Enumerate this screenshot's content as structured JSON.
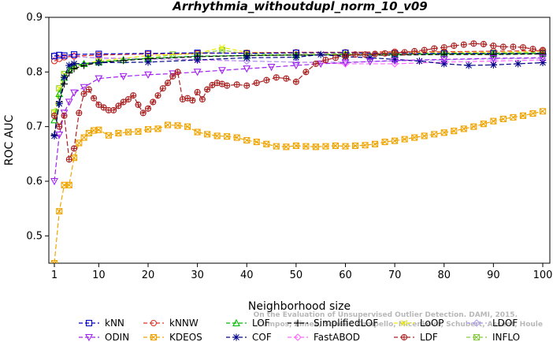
{
  "chart_data": {
    "type": "line",
    "title": "Arrhythmia_withoutdupl_norm_10_v09",
    "xlabel": "Neighborhood size",
    "ylabel": "ROC AUC",
    "xlim": [
      1,
      100
    ],
    "ylim": [
      0.45,
      0.9
    ],
    "xticks": [
      1,
      10,
      20,
      30,
      40,
      50,
      60,
      70,
      80,
      90,
      100
    ],
    "yticks": [
      0.5,
      0.6,
      0.7,
      0.8,
      0.9
    ],
    "grid": false,
    "legend_position": "bottom",
    "watermark": [
      "Campos, Zimek, Sander, Campello, Micenková, Schubert, Assent, Houle",
      "On the Evaluation of Unsupervised Outlier Detection. DAMI, 2015."
    ],
    "series": [
      {
        "name": "kNN",
        "color": "#0000cc",
        "marker": "square",
        "dash": "6,3",
        "points": [
          [
            1,
            0.829
          ],
          [
            2,
            0.831
          ],
          [
            3,
            0.83
          ],
          [
            5,
            0.832
          ],
          [
            10,
            0.833
          ],
          [
            20,
            0.834
          ],
          [
            30,
            0.835
          ],
          [
            40,
            0.834
          ],
          [
            50,
            0.835
          ],
          [
            60,
            0.835
          ],
          [
            70,
            0.834
          ],
          [
            80,
            0.834
          ],
          [
            90,
            0.834
          ],
          [
            100,
            0.834
          ]
        ]
      },
      {
        "name": "kNNW",
        "color": "#e0302a",
        "marker": "circle",
        "dash": "6,3",
        "points": [
          [
            1,
            0.82
          ],
          [
            2,
            0.824
          ],
          [
            3,
            0.827
          ],
          [
            5,
            0.829
          ],
          [
            10,
            0.831
          ],
          [
            20,
            0.833
          ],
          [
            30,
            0.834
          ],
          [
            40,
            0.835
          ],
          [
            50,
            0.836
          ],
          [
            60,
            0.836
          ],
          [
            70,
            0.837
          ],
          [
            80,
            0.837
          ],
          [
            90,
            0.838
          ],
          [
            100,
            0.839
          ]
        ]
      },
      {
        "name": "LOF",
        "color": "#00bb00",
        "marker": "triangle",
        "dash": "6,3",
        "points": [
          [
            1,
            0.712
          ],
          [
            2,
            0.76
          ],
          [
            3,
            0.79
          ],
          [
            4,
            0.805
          ],
          [
            5,
            0.812
          ],
          [
            7,
            0.815
          ],
          [
            10,
            0.818
          ],
          [
            15,
            0.822
          ],
          [
            20,
            0.825
          ],
          [
            30,
            0.829
          ],
          [
            40,
            0.83
          ],
          [
            50,
            0.831
          ],
          [
            60,
            0.832
          ],
          [
            70,
            0.832
          ],
          [
            80,
            0.833
          ],
          [
            90,
            0.833
          ],
          [
            100,
            0.834
          ]
        ]
      },
      {
        "name": "SimplifiedLOF",
        "color": "#000000",
        "marker": "plus",
        "dash": "6,3",
        "points": [
          [
            1,
            0.685
          ],
          [
            2,
            0.745
          ],
          [
            3,
            0.778
          ],
          [
            4,
            0.798
          ],
          [
            5,
            0.806
          ],
          [
            7,
            0.812
          ],
          [
            10,
            0.817
          ],
          [
            15,
            0.821
          ],
          [
            20,
            0.824
          ],
          [
            30,
            0.828
          ],
          [
            40,
            0.83
          ],
          [
            50,
            0.831
          ],
          [
            60,
            0.831
          ],
          [
            70,
            0.831
          ],
          [
            80,
            0.832
          ],
          [
            90,
            0.832
          ],
          [
            100,
            0.833
          ]
        ]
      },
      {
        "name": "LoOP",
        "color": "#eeee00",
        "marker": "x",
        "dash": "6,3",
        "points": [
          [
            1,
            0.726
          ],
          [
            2,
            0.77
          ],
          [
            3,
            0.795
          ],
          [
            5,
            0.812
          ],
          [
            10,
            0.82
          ],
          [
            20,
            0.83
          ],
          [
            30,
            0.834
          ],
          [
            35,
            0.845
          ],
          [
            40,
            0.836
          ],
          [
            50,
            0.834
          ],
          [
            60,
            0.834
          ],
          [
            70,
            0.835
          ],
          [
            80,
            0.836
          ],
          [
            90,
            0.836
          ],
          [
            100,
            0.837
          ]
        ]
      },
      {
        "name": "LDOF",
        "color": "#b0a0ee",
        "marker": "diamond",
        "dash": "6,3",
        "points": [
          [
            1,
            0.83
          ],
          [
            5,
            0.829
          ],
          [
            10,
            0.825
          ],
          [
            20,
            0.824
          ],
          [
            30,
            0.823
          ],
          [
            40,
            0.82
          ],
          [
            50,
            0.818
          ],
          [
            60,
            0.818
          ],
          [
            70,
            0.82
          ],
          [
            80,
            0.822
          ],
          [
            90,
            0.824
          ],
          [
            100,
            0.825
          ]
        ]
      },
      {
        "name": "ODIN",
        "color": "#a020f0",
        "marker": "triangle-down",
        "dash": "6,3",
        "points": [
          [
            1,
            0.6
          ],
          [
            2,
            0.685
          ],
          [
            3,
            0.725
          ],
          [
            4,
            0.745
          ],
          [
            5,
            0.762
          ],
          [
            7,
            0.772
          ],
          [
            10,
            0.788
          ],
          [
            15,
            0.792
          ],
          [
            20,
            0.795
          ],
          [
            25,
            0.797
          ],
          [
            30,
            0.8
          ],
          [
            35,
            0.803
          ],
          [
            40,
            0.806
          ],
          [
            45,
            0.809
          ],
          [
            50,
            0.812
          ],
          [
            55,
            0.815
          ],
          [
            60,
            0.817
          ],
          [
            65,
            0.819
          ],
          [
            70,
            0.821
          ],
          [
            80,
            0.823
          ],
          [
            90,
            0.825
          ],
          [
            100,
            0.826
          ]
        ]
      },
      {
        "name": "COF",
        "color": "#000088",
        "marker": "star",
        "dash": "6,3",
        "points": [
          [
            1,
            0.683
          ],
          [
            2,
            0.742
          ],
          [
            3,
            0.79
          ],
          [
            4,
            0.812
          ],
          [
            5,
            0.815
          ],
          [
            10,
            0.817
          ],
          [
            20,
            0.818
          ],
          [
            30,
            0.822
          ],
          [
            40,
            0.826
          ],
          [
            50,
            0.827
          ],
          [
            55,
            0.832
          ],
          [
            60,
            0.828
          ],
          [
            65,
            0.826
          ],
          [
            70,
            0.823
          ],
          [
            75,
            0.82
          ],
          [
            80,
            0.815
          ],
          [
            85,
            0.812
          ],
          [
            90,
            0.813
          ],
          [
            95,
            0.815
          ],
          [
            100,
            0.817
          ]
        ]
      },
      {
        "name": "KDEOS",
        "color": "#f0a400",
        "marker": "square-x",
        "dash": "6,3",
        "points": [
          [
            1,
            0.45
          ],
          [
            2,
            0.545
          ],
          [
            3,
            0.593
          ],
          [
            4,
            0.593
          ],
          [
            5,
            0.643
          ],
          [
            6,
            0.67
          ],
          [
            7,
            0.68
          ],
          [
            8,
            0.688
          ],
          [
            9,
            0.693
          ],
          [
            10,
            0.694
          ],
          [
            12,
            0.684
          ],
          [
            14,
            0.688
          ],
          [
            16,
            0.69
          ],
          [
            18,
            0.691
          ],
          [
            20,
            0.695
          ],
          [
            22,
            0.696
          ],
          [
            24,
            0.703
          ],
          [
            26,
            0.702
          ],
          [
            28,
            0.7
          ],
          [
            30,
            0.69
          ],
          [
            32,
            0.686
          ],
          [
            34,
            0.683
          ],
          [
            36,
            0.682
          ],
          [
            38,
            0.68
          ],
          [
            40,
            0.675
          ],
          [
            42,
            0.672
          ],
          [
            44,
            0.668
          ],
          [
            46,
            0.664
          ],
          [
            48,
            0.663
          ],
          [
            50,
            0.665
          ],
          [
            52,
            0.664
          ],
          [
            54,
            0.663
          ],
          [
            56,
            0.664
          ],
          [
            58,
            0.665
          ],
          [
            60,
            0.664
          ],
          [
            62,
            0.665
          ],
          [
            64,
            0.666
          ],
          [
            66,
            0.668
          ],
          [
            68,
            0.672
          ],
          [
            70,
            0.674
          ],
          [
            72,
            0.677
          ],
          [
            74,
            0.68
          ],
          [
            76,
            0.683
          ],
          [
            78,
            0.686
          ],
          [
            80,
            0.689
          ],
          [
            82,
            0.692
          ],
          [
            84,
            0.696
          ],
          [
            86,
            0.7
          ],
          [
            88,
            0.705
          ],
          [
            90,
            0.71
          ],
          [
            92,
            0.714
          ],
          [
            94,
            0.717
          ],
          [
            96,
            0.72
          ],
          [
            98,
            0.724
          ],
          [
            100,
            0.728
          ]
        ]
      },
      {
        "name": "FastABOD",
        "color": "#ff66ff",
        "marker": "diamond",
        "dash": "6,3",
        "points": [
          [
            1,
            0.83
          ],
          [
            5,
            0.828
          ],
          [
            10,
            0.826
          ],
          [
            20,
            0.824
          ],
          [
            30,
            0.822
          ],
          [
            40,
            0.82
          ],
          [
            50,
            0.818
          ],
          [
            60,
            0.815
          ],
          [
            70,
            0.815
          ],
          [
            80,
            0.818
          ],
          [
            90,
            0.82
          ],
          [
            100,
            0.822
          ]
        ]
      },
      {
        "name": "LDF",
        "color": "#aa2222",
        "marker": "circle-plus",
        "dash": "6,3",
        "points": [
          [
            1,
            0.72
          ],
          [
            2,
            0.7
          ],
          [
            3,
            0.72
          ],
          [
            4,
            0.64
          ],
          [
            5,
            0.66
          ],
          [
            6,
            0.725
          ],
          [
            7,
            0.76
          ],
          [
            8,
            0.768
          ],
          [
            9,
            0.752
          ],
          [
            10,
            0.74
          ],
          [
            11,
            0.735
          ],
          [
            12,
            0.73
          ],
          [
            13,
            0.73
          ],
          [
            14,
            0.738
          ],
          [
            15,
            0.745
          ],
          [
            16,
            0.75
          ],
          [
            17,
            0.757
          ],
          [
            18,
            0.74
          ],
          [
            19,
            0.725
          ],
          [
            20,
            0.733
          ],
          [
            21,
            0.745
          ],
          [
            22,
            0.757
          ],
          [
            23,
            0.77
          ],
          [
            24,
            0.78
          ],
          [
            25,
            0.792
          ],
          [
            26,
            0.8
          ],
          [
            27,
            0.75
          ],
          [
            28,
            0.752
          ],
          [
            29,
            0.748
          ],
          [
            30,
            0.763
          ],
          [
            31,
            0.75
          ],
          [
            32,
            0.768
          ],
          [
            33,
            0.776
          ],
          [
            34,
            0.78
          ],
          [
            35,
            0.778
          ],
          [
            36,
            0.775
          ],
          [
            38,
            0.777
          ],
          [
            40,
            0.775
          ],
          [
            42,
            0.78
          ],
          [
            44,
            0.785
          ],
          [
            46,
            0.79
          ],
          [
            48,
            0.788
          ],
          [
            50,
            0.782
          ],
          [
            52,
            0.8
          ],
          [
            54,
            0.815
          ],
          [
            56,
            0.822
          ],
          [
            58,
            0.826
          ],
          [
            60,
            0.829
          ],
          [
            62,
            0.832
          ],
          [
            64,
            0.832
          ],
          [
            66,
            0.833
          ],
          [
            68,
            0.834
          ],
          [
            70,
            0.835
          ],
          [
            72,
            0.836
          ],
          [
            74,
            0.838
          ],
          [
            76,
            0.84
          ],
          [
            78,
            0.843
          ],
          [
            80,
            0.845
          ],
          [
            82,
            0.848
          ],
          [
            84,
            0.85
          ],
          [
            86,
            0.852
          ],
          [
            88,
            0.851
          ],
          [
            90,
            0.848
          ],
          [
            92,
            0.846
          ],
          [
            94,
            0.846
          ],
          [
            96,
            0.845
          ],
          [
            98,
            0.842
          ],
          [
            100,
            0.84
          ]
        ]
      },
      {
        "name": "INFLO",
        "color": "#88cc44",
        "marker": "square-x",
        "dash": "6,3",
        "points": [
          [
            1,
            0.726
          ],
          [
            2,
            0.77
          ],
          [
            3,
            0.796
          ],
          [
            5,
            0.81
          ],
          [
            10,
            0.818
          ],
          [
            20,
            0.825
          ],
          [
            25,
            0.832
          ],
          [
            30,
            0.833
          ],
          [
            35,
            0.84
          ],
          [
            40,
            0.833
          ],
          [
            50,
            0.831
          ],
          [
            60,
            0.832
          ],
          [
            70,
            0.833
          ],
          [
            80,
            0.834
          ],
          [
            90,
            0.835
          ],
          [
            100,
            0.836
          ]
        ]
      }
    ]
  }
}
